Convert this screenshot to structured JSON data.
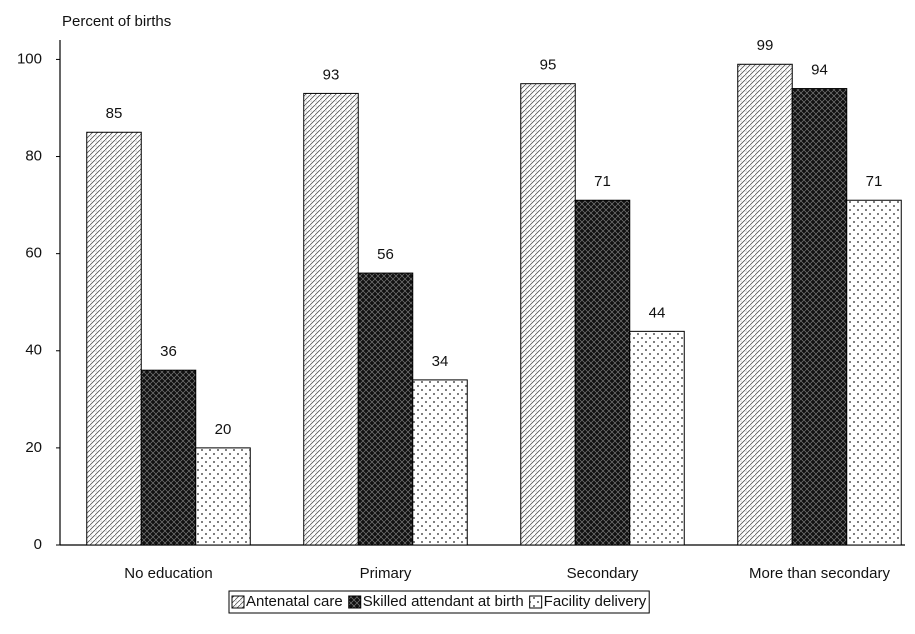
{
  "chart_data": {
    "type": "bar",
    "y_label": "Percent of births",
    "categories": [
      "No education",
      "Primary",
      "Secondary",
      "More than secondary"
    ],
    "series": [
      {
        "name": "Antenatal care",
        "color": "#ffffff",
        "pattern": "diagonal",
        "values": [
          85,
          93,
          95,
          99
        ]
      },
      {
        "name": "Skilled attendant at birth",
        "color": "#000000",
        "pattern": "crosshatch",
        "values": [
          36,
          56,
          71,
          94
        ]
      },
      {
        "name": "Facility delivery",
        "color": "#ffffff",
        "pattern": "dots",
        "values": [
          20,
          34,
          44,
          71
        ]
      }
    ],
    "ylim": [
      0,
      104
    ],
    "yticks": [
      0,
      20,
      40,
      60,
      80,
      100
    ],
    "grid": false,
    "legend": "bottom"
  }
}
